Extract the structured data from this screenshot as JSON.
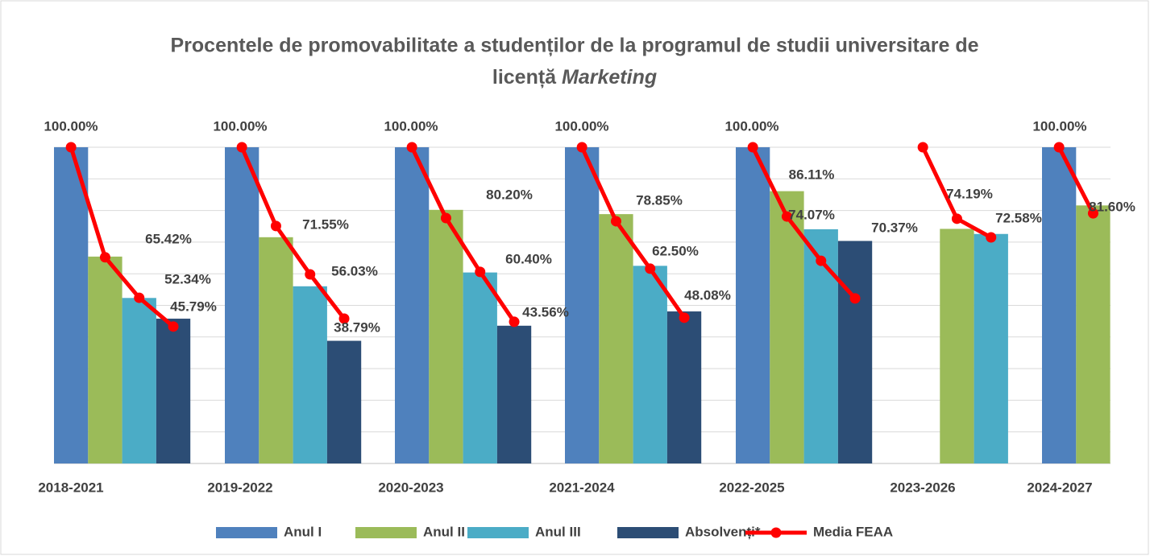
{
  "chart_data": {
    "type": "bar",
    "title": {
      "line1": "Procentele de promovabilitate a studenților de la programul de studii universitare de",
      "line2": "licență",
      "line2_italic": "Marketing"
    },
    "categories": [
      "2018-2021",
      "2019-2022",
      "2020-2023",
      "2021-2024",
      "2022-2025",
      "2023-2026",
      "2024-2027"
    ],
    "ylim": [
      0,
      100
    ],
    "yticks": [
      0,
      10,
      20,
      30,
      40,
      50,
      60,
      70,
      80,
      90,
      100
    ],
    "grid": true,
    "legend": "bottom",
    "series": [
      {
        "name": "Anul I",
        "color": "#4f81bd",
        "values": [
          100,
          100,
          100,
          100,
          100,
          null,
          100
        ],
        "value_labels": [
          "100.00%",
          "100.00%",
          "100.00%",
          "100.00%",
          "100.00%",
          null,
          "100.00%"
        ]
      },
      {
        "name": "Anul II",
        "color": "#9bbb59",
        "values": [
          65.42,
          71.55,
          80.2,
          78.85,
          86.11,
          74.19,
          81.6
        ],
        "value_labels": [
          "65.42%",
          "71.55%",
          "80.20%",
          "78.85%",
          "86.11%",
          "74.19%",
          "81.60%"
        ]
      },
      {
        "name": "Anul III",
        "color": "#4bacc6",
        "values": [
          52.34,
          56.03,
          60.4,
          62.5,
          74.07,
          72.58,
          null
        ],
        "value_labels": [
          "52.34%",
          "56.03%",
          "60.40%",
          "62.50%",
          "74.07%",
          "72.58%",
          null
        ]
      },
      {
        "name": "Absolvenți*",
        "color": "#2c4d75",
        "values": [
          45.79,
          38.79,
          43.56,
          48.08,
          70.37,
          null,
          null
        ],
        "value_labels": [
          "45.79%",
          "38.79%",
          "43.56%",
          "48.08%",
          "70.37%",
          null,
          null
        ]
      },
      {
        "name": "Media FEAA",
        "color": "#ff0000",
        "type": "line",
        "values": [
          [
            100,
            65.2,
            52.4,
            43.3
          ],
          [
            100,
            75.1,
            59.8,
            45.8
          ],
          [
            100,
            77.6,
            60.6,
            44.8
          ],
          [
            100,
            76.6,
            61.6,
            46.1
          ],
          [
            100,
            78.1,
            64.1,
            52.2
          ],
          [
            100,
            77.4,
            71.5,
            null
          ],
          [
            100,
            79.1,
            null,
            null
          ]
        ]
      }
    ]
  }
}
